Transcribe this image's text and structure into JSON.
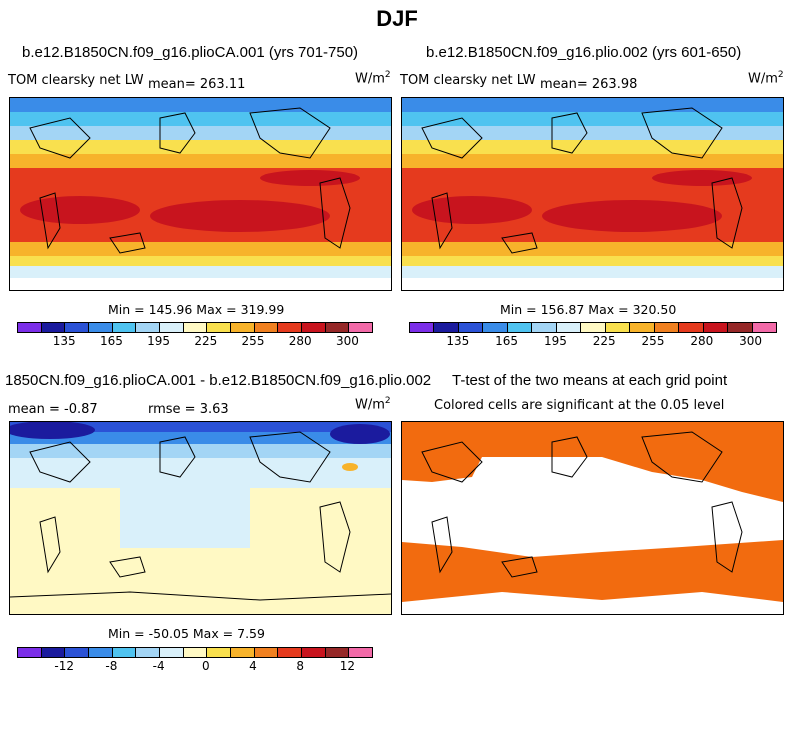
{
  "title": "DJF",
  "panels": {
    "p1": {
      "case": "b.e12.B1850CN.f09_g16.plioCA.001 (yrs 701-750)",
      "var": "TOM clearsky net LW",
      "mean": "mean= 263.11",
      "units": "W/m",
      "units_exp": "2",
      "stats": "Min = 145.96 Max = 319.99"
    },
    "p2": {
      "case": "b.e12.B1850CN.f09_g16.plio.002 (yrs 601-650)",
      "var": "TOM clearsky net LW",
      "mean": "mean= 263.98",
      "units": "W/m",
      "units_exp": "2",
      "stats": "Min = 156.87 Max = 320.50"
    },
    "p3": {
      "case": "1850CN.f09_g16.plioCA.001 - b.e12.B1850CN.f09_g16.plio.002",
      "mean": "mean =  -0.87",
      "rmse": "rmse =    3.63",
      "units": "W/m",
      "units_exp": "2",
      "stats": "Min = -50.05 Max =    7.59"
    },
    "p4": {
      "case": "T-test of the two means at each grid point",
      "note": "Colored cells are significant at the 0.05 level"
    }
  },
  "colorbars": {
    "abs": {
      "colors": [
        "#7b2ee8",
        "#1b1b9e",
        "#2b52d6",
        "#3a8ce8",
        "#4fc3f0",
        "#a3d5f5",
        "#d9f0fa",
        "#fff9c4",
        "#f9e04e",
        "#f7b32b",
        "#f08020",
        "#e53a1e",
        "#c8141e",
        "#962828",
        "#f26aa8"
      ],
      "ticks": [
        "135",
        "165",
        "195",
        "225",
        "255",
        "280",
        "300"
      ]
    },
    "diff": {
      "colors": [
        "#7b2ee8",
        "#1b1b9e",
        "#2b52d6",
        "#3a8ce8",
        "#4fc3f0",
        "#a3d5f5",
        "#d9f0fa",
        "#fff9c4",
        "#f9e04e",
        "#f7b32b",
        "#f08020",
        "#e53a1e",
        "#c8141e",
        "#962828",
        "#f26aa8"
      ],
      "ticks": [
        "-12",
        "-8",
        "-4",
        "0",
        "4",
        "8",
        "12"
      ]
    }
  },
  "map_colors": {
    "deep_red": "#c8141e",
    "red": "#e53a1e",
    "orange": "#f08020",
    "light_orange": "#f7b32b",
    "yellow": "#f9e04e",
    "pale_yellow": "#fff9c4",
    "pale_blue": "#d9f0fa",
    "light_blue": "#a3d5f5",
    "blue": "#3a8ce8",
    "dark_blue": "#2b52d6",
    "navy": "#1b1b9e",
    "ttest": "#f26b0f"
  }
}
